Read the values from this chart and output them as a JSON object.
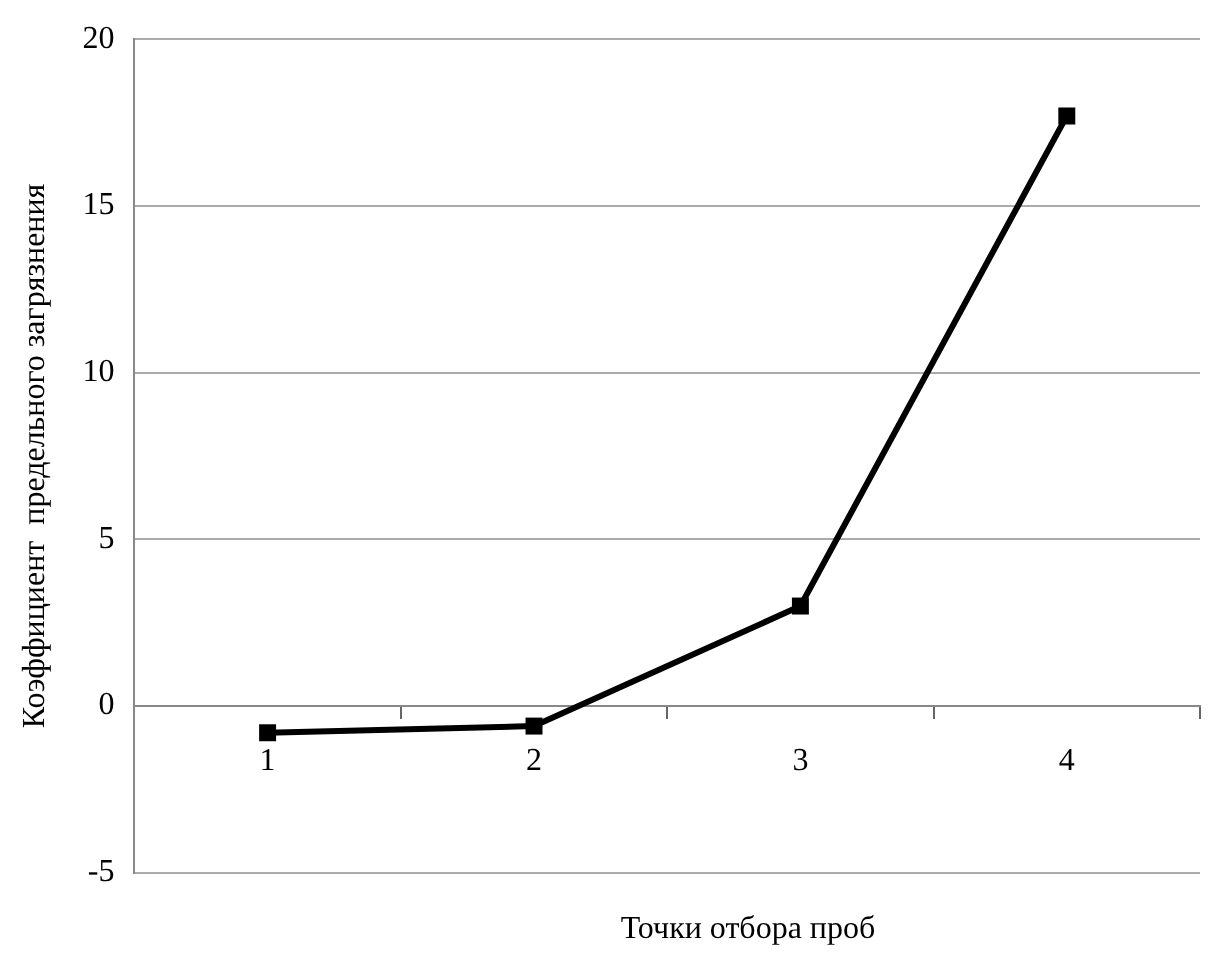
{
  "chart_data": {
    "type": "line",
    "xlabel": "Точки  отбора проб",
    "ylabel": "Коэффициент  предельного загрязнения",
    "categories": [
      "1",
      "2",
      "3",
      "4"
    ],
    "series": [
      {
        "color": "#000000",
        "values": [
          -0.8,
          -0.6,
          3.0,
          17.7
        ]
      }
    ],
    "ylim": [
      -5,
      20
    ],
    "yticks": [
      -5,
      0,
      5,
      10,
      15,
      20
    ],
    "grid": "y",
    "legend": false,
    "marker": "square",
    "line_style": "solid"
  }
}
